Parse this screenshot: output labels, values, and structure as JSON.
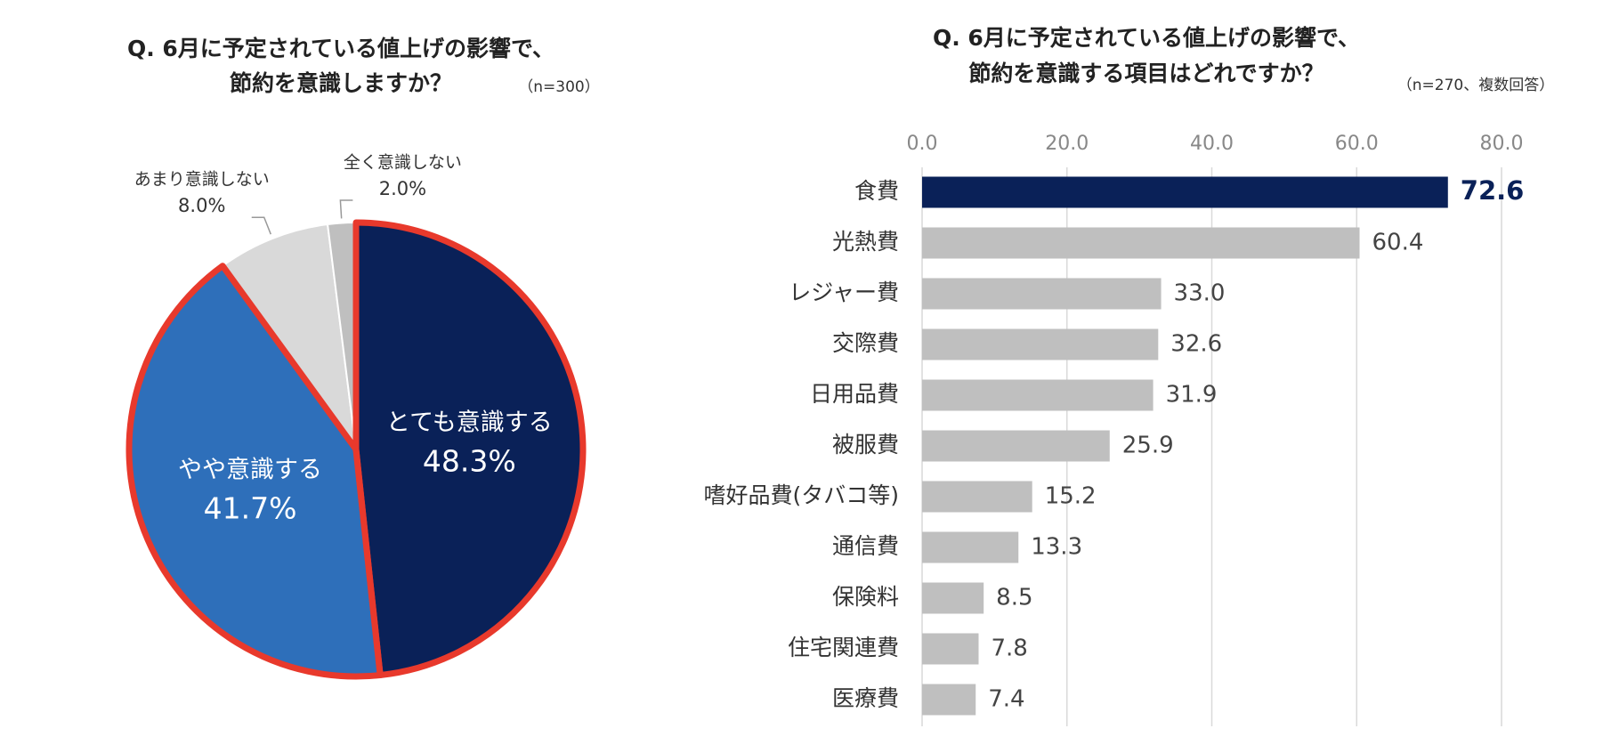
{
  "chart_data": [
    {
      "type": "pie",
      "title": [
        "Q. 6月に予定されている値上げの影響で、",
        "節約を意識しますか？"
      ],
      "note": "（n=300）",
      "categories": [
        "とても意識する",
        "やや意識する",
        "あまり意識しない",
        "全く意識しない"
      ],
      "values": [
        48.3,
        41.7,
        8.0,
        2.0
      ],
      "value_labels": [
        "48.3%",
        "41.7%",
        "8.0%",
        "2.0%"
      ],
      "colors": [
        "#0a2158",
        "#2e6fba",
        "#d9d9d9",
        "#bfbfbf"
      ],
      "highlight": {
        "color": "#e8392c",
        "slices": [
          0,
          1
        ]
      }
    },
    {
      "type": "bar",
      "orientation": "horizontal",
      "title": [
        "Q. 6月に予定されている値上げの影響で、",
        "節約を意識する項目はどれですか？"
      ],
      "note": "（n=270、複数回答）",
      "categories": [
        "食費",
        "光熱費",
        "レジャー費",
        "交際費",
        "日用品費",
        "被服費",
        "嗜好品費(タバコ等)",
        "通信費",
        "保険料",
        "住宅関連費",
        "医療費"
      ],
      "values": [
        72.6,
        60.4,
        33.0,
        32.6,
        31.9,
        25.9,
        15.2,
        13.3,
        8.5,
        7.8,
        7.4
      ],
      "value_labels": [
        "72.6",
        "60.4",
        "33.0",
        "32.6",
        "31.9",
        "25.9",
        "15.2",
        "13.3",
        "8.5",
        "7.8",
        "7.4"
      ],
      "color": "#bfbfbf",
      "highlight": {
        "color": "#0a2158",
        "bars": [
          0
        ]
      },
      "xlim": [
        0,
        80
      ],
      "xticks": [
        {
          "value": 0,
          "label": "0.0"
        },
        {
          "value": 20,
          "label": "20.0"
        },
        {
          "value": 40,
          "label": "40.0"
        },
        {
          "value": 60,
          "label": "60.0"
        },
        {
          "value": 80,
          "label": "80.0"
        }
      ],
      "grid": true
    }
  ]
}
